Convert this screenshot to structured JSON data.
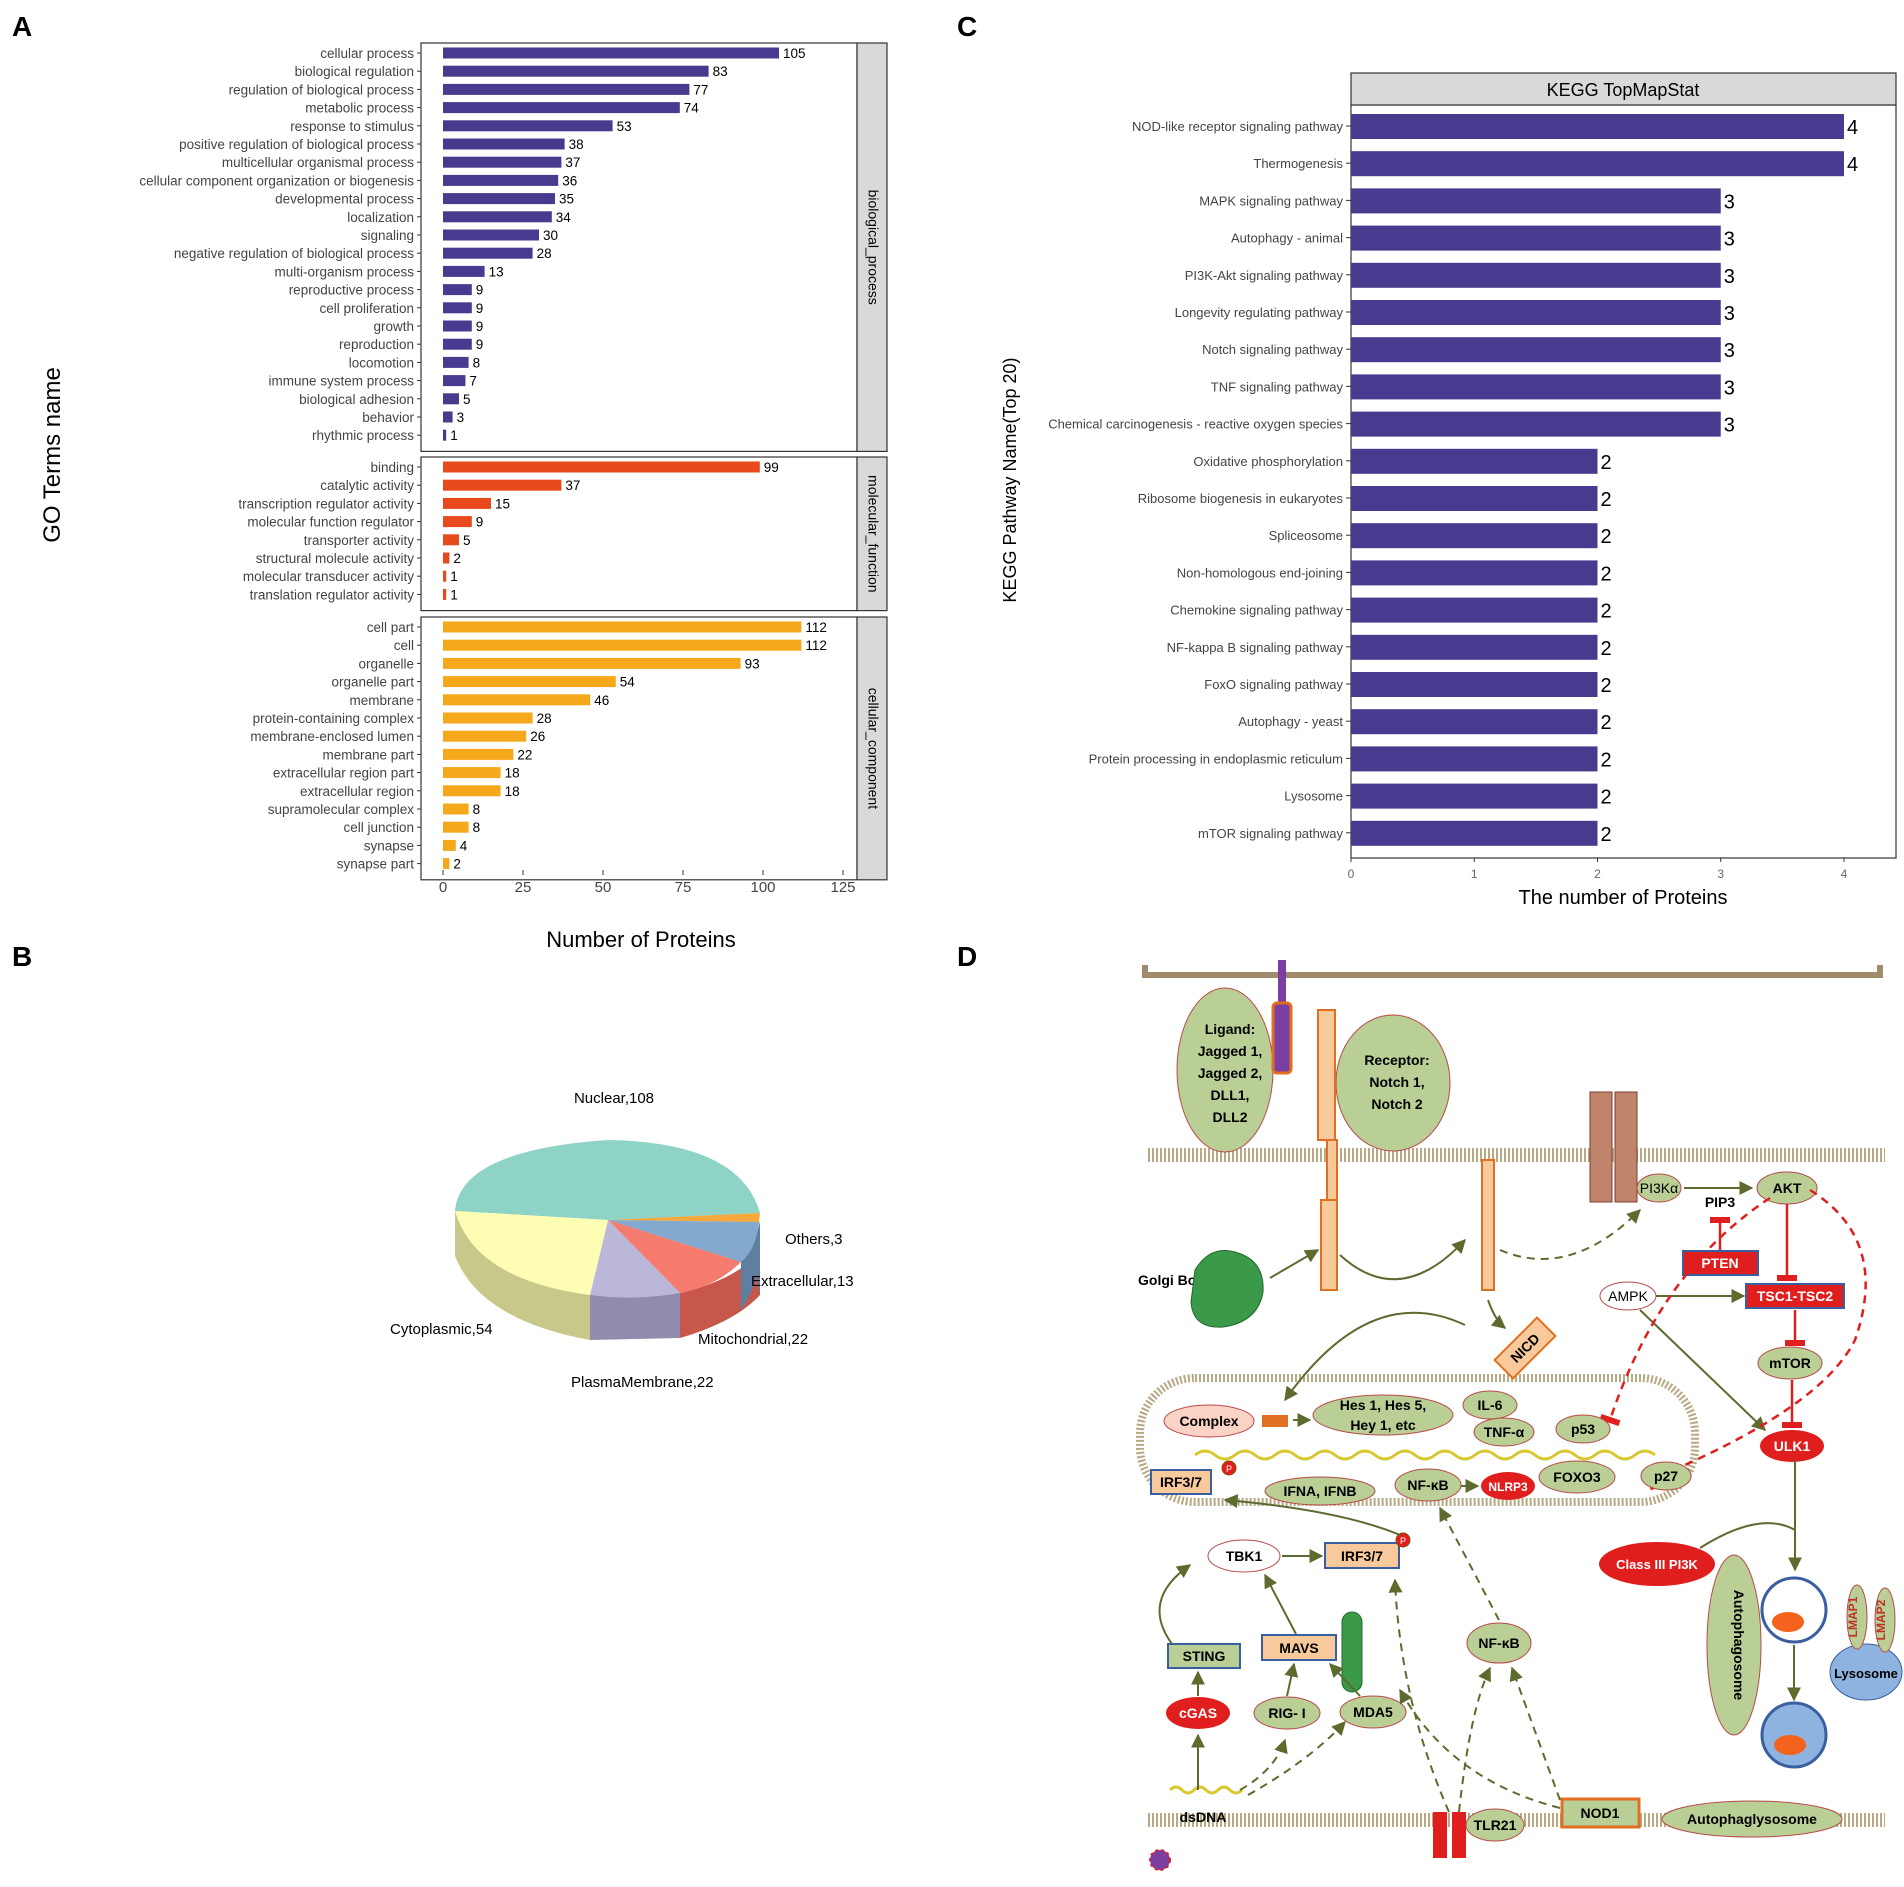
{
  "panels": {
    "a": "A",
    "b": "B",
    "c": "C",
    "d": "D"
  },
  "colors": {
    "bp": "#473b8f",
    "mf": "#e8491d",
    "cc": "#f5a81c",
    "kegg": "#473b8f",
    "strip": "#d9d9d9"
  },
  "chart_data": [
    {
      "type": "bar",
      "orientation": "horizontal",
      "title": "",
      "xlabel": "Number of Proteins",
      "ylabel": "GO Terms name",
      "xlim": [
        0,
        125
      ],
      "xticks": [
        0,
        25,
        50,
        75,
        100,
        125
      ],
      "facets": [
        {
          "name": "biological_process",
          "color": "#473b8f",
          "categories": [
            "cellular process",
            "biological regulation",
            "regulation of biological process",
            "metabolic process",
            "response to stimulus",
            "positive regulation of biological process",
            "multicellular organismal process",
            "cellular component organization or biogenesis",
            "developmental process",
            "localization",
            "signaling",
            "negative regulation of biological process",
            "multi-organism process",
            "reproductive process",
            "cell proliferation",
            "growth",
            "reproduction",
            "locomotion",
            "immune system process",
            "biological adhesion",
            "behavior",
            "rhythmic process"
          ],
          "values": [
            105,
            83,
            77,
            74,
            53,
            38,
            37,
            36,
            35,
            34,
            30,
            28,
            13,
            9,
            9,
            9,
            9,
            8,
            7,
            5,
            3,
            1
          ]
        },
        {
          "name": "molecular_function",
          "color": "#e8491d",
          "categories": [
            "binding",
            "catalytic activity",
            "transcription regulator activity",
            "molecular function regulator",
            "transporter activity",
            "structural molecule activity",
            "molecular transducer activity",
            "translation regulator activity"
          ],
          "values": [
            99,
            37,
            15,
            9,
            5,
            2,
            1,
            1
          ]
        },
        {
          "name": "cellular_component",
          "color": "#f5a81c",
          "categories": [
            "cell part",
            "cell",
            "organelle",
            "organelle part",
            "membrane",
            "protein-containing complex",
            "membrane-enclosed lumen",
            "membrane part",
            "extracellular region part",
            "extracellular region",
            "supramolecular complex",
            "cell junction",
            "synapse",
            "synapse part"
          ],
          "values": [
            112,
            112,
            93,
            54,
            46,
            28,
            26,
            22,
            18,
            18,
            8,
            8,
            4,
            2
          ]
        }
      ]
    },
    {
      "type": "pie",
      "style": "3d",
      "slices": [
        {
          "label": "Nuclear,108",
          "value": 108,
          "color": "#8fd3c7"
        },
        {
          "label": "Others,3",
          "value": 3,
          "color": "#f5a83c"
        },
        {
          "label": "Extracellular,13",
          "value": 13,
          "color": "#84a9cf"
        },
        {
          "label": "Mitochondrial,22",
          "value": 22,
          "color": "#f47b6e"
        },
        {
          "label": "PlasmaMembrane,22",
          "value": 22,
          "color": "#bab7d8"
        },
        {
          "label": "Cytoplasmic,54",
          "value": 54,
          "color": "#fdfdb3"
        }
      ]
    },
    {
      "type": "bar",
      "orientation": "horizontal",
      "title": "KEGG TopMapStat",
      "xlabel": "The number of Proteins",
      "ylabel": "KEGG Pathway Name(Top 20)",
      "xlim": [
        0,
        4.4
      ],
      "xticks": [
        0,
        1,
        2,
        3,
        4
      ],
      "categories": [
        "NOD-like receptor signaling pathway",
        "Thermogenesis",
        "MAPK signaling pathway",
        "Autophagy - animal",
        "PI3K-Akt signaling pathway",
        "Longevity regulating pathway",
        "Notch signaling pathway",
        "TNF signaling pathway",
        "Chemical carcinogenesis - reactive oxygen species",
        "Oxidative phosphorylation",
        "Ribosome biogenesis in eukaryotes",
        "Spliceosome",
        "Non-homologous end-joining",
        "Chemokine signaling pathway",
        "NF-kappa B signaling pathway",
        "FoxO signaling pathway",
        "Autophagy - yeast",
        "Protein processing in endoplasmic reticulum",
        "Lysosome",
        "mTOR signaling pathway"
      ],
      "values": [
        4,
        4,
        3,
        3,
        3,
        3,
        3,
        3,
        3,
        2,
        2,
        2,
        2,
        2,
        2,
        2,
        2,
        2,
        2,
        2
      ]
    }
  ],
  "diagram": {
    "ligand": [
      "Ligand:",
      "Jagged 1,",
      "Jagged 2,",
      "DLL1,",
      "DLL2"
    ],
    "receptor": [
      "Receptor:",
      "Notch 1,",
      "Notch 2"
    ],
    "pi3k": "PI3Kα",
    "pip3": "PIP3",
    "akt": "AKT",
    "pten": "PTEN",
    "ampk": "AMPK",
    "tsc": "TSC1-TSC2",
    "mtor": "mTOR",
    "golgi": "Golgi Body",
    "nicd": "NICD",
    "complex": "Complex",
    "hes": [
      "Hes 1, Hes 5,",
      "Hey 1, etc"
    ],
    "il6": "IL-6",
    "tnf": "TNF-α",
    "p53": "p53",
    "ulk1": "ULK1",
    "irf_nuc": "IRF3/7",
    "ifn": "IFNA, IFNB",
    "nfkb_nuc": "NF-κB",
    "nlrp3": "NLRP3",
    "foxo3": "FOXO3",
    "p27": "p27",
    "tbk1": "TBK1",
    "irf_cyt": "IRF3/7",
    "class3": "Class III PI3K",
    "autophagosome": "Autophagosome",
    "lmap1": "LMAP1",
    "lmap2": "LMAP2",
    "lysosome": "Lysosome",
    "sting": "STING",
    "mavs": "MAVS",
    "nfkb_cyt": "NF-κB",
    "cgas": "cGAS",
    "rig": "RIG- I",
    "mda5": "MDA5",
    "dsdna": "dsDNA",
    "tlr21": "TLR21",
    "nod1": "NOD1",
    "autolyso": "Autophaglysosome",
    "p": "P"
  }
}
